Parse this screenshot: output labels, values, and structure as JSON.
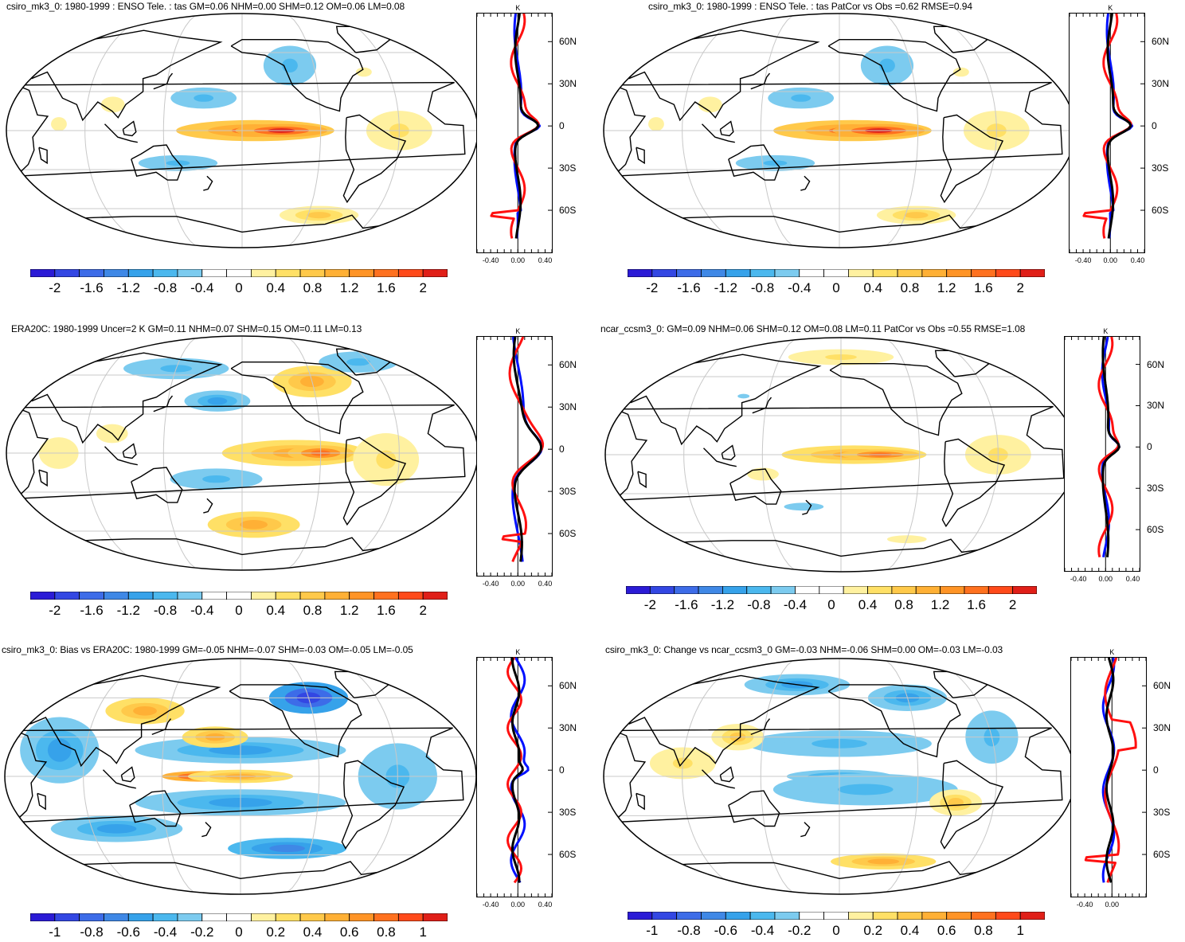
{
  "colors": {
    "colorbar": [
      "#2b1bd6",
      "#3347e3",
      "#3d6ce8",
      "#3f88e6",
      "#36a2ea",
      "#4bb8ee",
      "#7ccbef",
      "#ffffff",
      "#ffffff",
      "#fff1a0",
      "#ffe066",
      "#ffc94a",
      "#ffb035",
      "#ff9426",
      "#ff711f",
      "#ff4a1a",
      "#e01f18"
    ],
    "coast": "#000000",
    "grid": "#c8c8c8",
    "zonal_model": "#0010ff",
    "zonal_obs": "#ff1010",
    "zonal_diff": "#000000"
  },
  "panels": [
    {
      "title": "csiro_mk3_0: 1980-1999 : ENSO Tele. : tas GM=0.06 NHM=0.00 SHM=0.12 OM=0.06 LM=0.08",
      "colorbar_labels": [
        "-2",
        "-1.6",
        "-1.2",
        "-0.8",
        "-0.4",
        "0",
        "0.4",
        "0.8",
        "1.2",
        "1.6",
        "2"
      ],
      "zonal_unit": "K",
      "lat_labels": [
        "60N",
        "30N",
        "0",
        "30S",
        "60S"
      ],
      "x_ticks": [
        "-0.40",
        "0.00",
        "0.40"
      ]
    },
    {
      "title": "csiro_mk3_0: 1980-1999 : ENSO Tele. : tas PatCor vs Obs =0.62 RMSE=0.94",
      "colorbar_labels": [
        "-2",
        "-1.6",
        "-1.2",
        "-0.8",
        "-0.4",
        "0",
        "0.4",
        "0.8",
        "1.2",
        "1.6",
        "2"
      ],
      "zonal_unit": "K",
      "lat_labels": [
        "60N",
        "30N",
        "0",
        "30S",
        "60S"
      ],
      "x_ticks": [
        "-0.40",
        "0.00",
        "0.40"
      ]
    },
    {
      "title": "ERA20C: 1980-1999 Uncer=2 K GM=0.11 NHM=0.07 SHM=0.15 OM=0.11 LM=0.13",
      "colorbar_labels": [
        "-2",
        "-1.6",
        "-1.2",
        "-0.8",
        "-0.4",
        "0",
        "0.4",
        "0.8",
        "1.2",
        "1.6",
        "2"
      ],
      "zonal_unit": "K",
      "lat_labels": [
        "60N",
        "30N",
        "0",
        "30S",
        "60S"
      ],
      "x_ticks": [
        "-0.40",
        "0.00",
        "0.40"
      ]
    },
    {
      "title": "ncar_ccsm3_0: GM=0.09 NHM=0.06 SHM=0.12 OM=0.08 LM=0.11 PatCor vs Obs =0.55 RMSE=1.08",
      "colorbar_labels": [
        "-2",
        "-1.6",
        "-1.2",
        "-0.8",
        "-0.4",
        "0",
        "0.4",
        "0.8",
        "1.2",
        "1.6",
        "2"
      ],
      "zonal_unit": "K",
      "lat_labels": [
        "60N",
        "30N",
        "0",
        "30S",
        "60S"
      ],
      "x_ticks": [
        "-0.40",
        "0.00",
        "0.40"
      ]
    },
    {
      "title": "csiro_mk3_0: Bias vs ERA20C: 1980-1999 GM=-0.05 NHM=-0.07 SHM=-0.03 OM=-0.05 LM=-0.05",
      "colorbar_labels": [
        "-1",
        "-0.8",
        "-0.6",
        "-0.4",
        "-0.2",
        "0",
        "0.2",
        "0.4",
        "0.6",
        "0.8",
        "1"
      ],
      "zonal_unit": "K",
      "lat_labels": [
        "60N",
        "30N",
        "0",
        "30S",
        "60S"
      ],
      "x_ticks": [
        "-0.40",
        "0.00",
        "0.40"
      ]
    },
    {
      "title": "csiro_mk3_0: Change vs ncar_ccsm3_0 GM=-0.03 NHM=-0.06 SHM=0.00 OM=-0.03 LM=-0.03",
      "colorbar_labels": [
        "-1",
        "-0.8",
        "-0.6",
        "-0.4",
        "-0.2",
        "0",
        "0.2",
        "0.4",
        "0.6",
        "0.8",
        "1"
      ],
      "zonal_unit": "K",
      "lat_labels": [
        "60N",
        "30N",
        "0",
        "30S",
        "60S"
      ],
      "x_ticks": [
        "-0.40",
        "0.00"
      ]
    }
  ]
}
